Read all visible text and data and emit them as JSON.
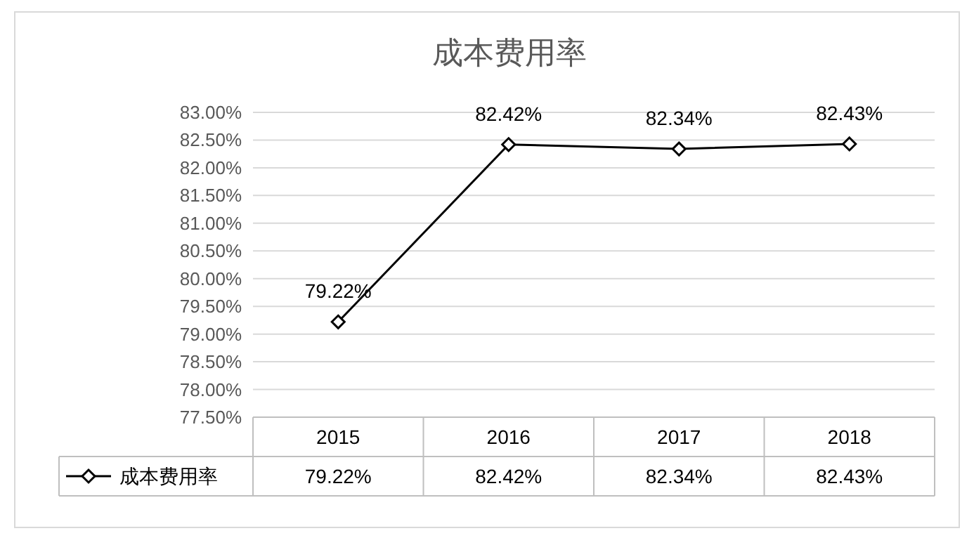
{
  "chart_data": {
    "type": "line",
    "title": "成本费用率",
    "categories": [
      "2015",
      "2016",
      "2017",
      "2018"
    ],
    "series": [
      {
        "name": "成本费用率",
        "color": "#000000",
        "values": [
          79.22,
          82.42,
          82.34,
          82.43
        ],
        "value_labels": [
          "79.22%",
          "82.42%",
          "82.34%",
          "82.43%"
        ]
      }
    ],
    "ylim": [
      77.5,
      83.0
    ],
    "yticks": [
      {
        "value": 77.5,
        "label": "77.50%"
      },
      {
        "value": 78.0,
        "label": "78.00%"
      },
      {
        "value": 78.5,
        "label": "78.50%"
      },
      {
        "value": 79.0,
        "label": "79.00%"
      },
      {
        "value": 79.5,
        "label": "79.50%"
      },
      {
        "value": 80.0,
        "label": "80.00%"
      },
      {
        "value": 80.5,
        "label": "80.50%"
      },
      {
        "value": 81.0,
        "label": "81.00%"
      },
      {
        "value": 81.5,
        "label": "81.50%"
      },
      {
        "value": 82.0,
        "label": "82.00%"
      },
      {
        "value": 82.5,
        "label": "82.50%"
      },
      {
        "value": 83.0,
        "label": "83.00%"
      }
    ],
    "grid": "y",
    "legend": "bottom",
    "marker": "diamond",
    "line_style": "solid"
  }
}
